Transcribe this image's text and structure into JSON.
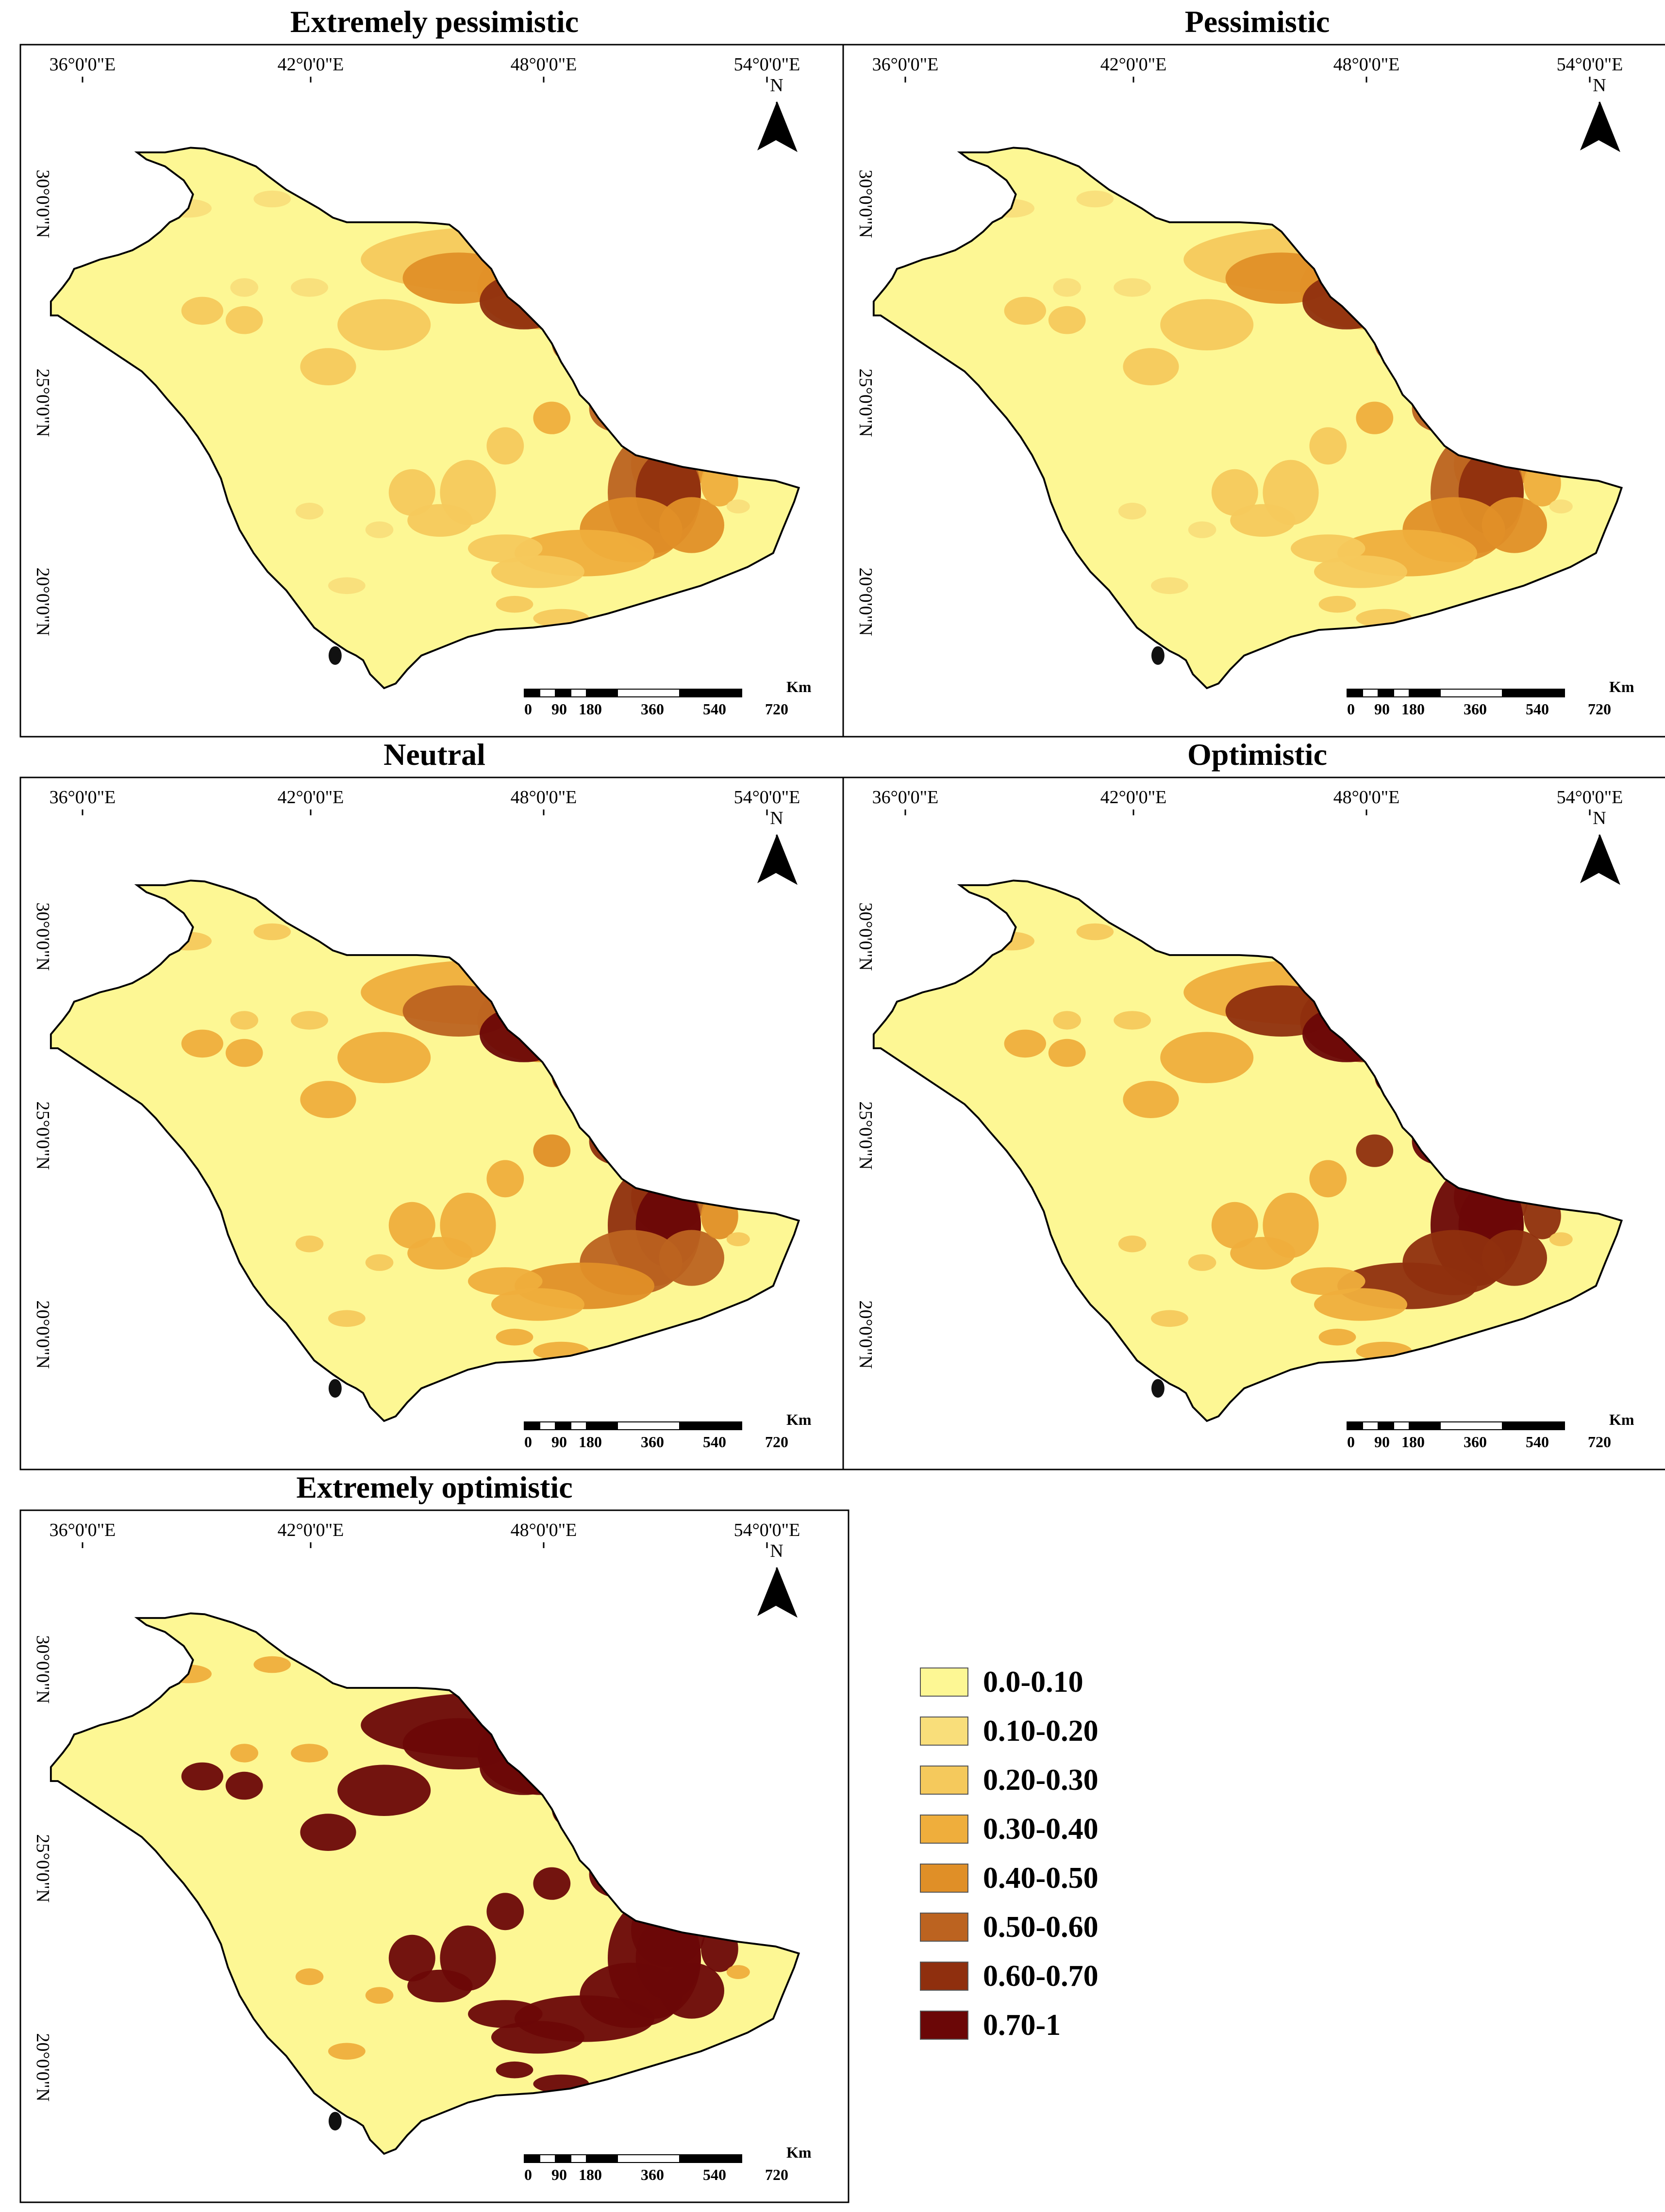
{
  "figure": {
    "panels": [
      {
        "title": "Extremely pessimistic",
        "level": 0
      },
      {
        "title": "Pessimistic",
        "level": 1
      },
      {
        "title": "Neutral",
        "level": 2
      },
      {
        "title": "Optimistic",
        "level": 3
      },
      {
        "title": "Extremely optimistic",
        "level": 4
      }
    ],
    "lon_labels": [
      "36°0'0\"E",
      "42°0'0\"E",
      "48°0'0\"E",
      "54°0'0\"E"
    ],
    "lat_labels": [
      "30°0'0\"N",
      "25°0'0\"N",
      "20°0'0\"N"
    ],
    "north_label": "N",
    "scalebar": {
      "unit": "Km",
      "ticks": [
        "0",
        "90",
        "180",
        "360",
        "540",
        "720"
      ]
    }
  },
  "legend": {
    "items": [
      {
        "label": "0.0-0.10",
        "color": "#fdf794"
      },
      {
        "label": "0.10-0.20",
        "color": "#f9de7a"
      },
      {
        "label": "0.20-0.30",
        "color": "#f5c95c"
      },
      {
        "label": "0.30-0.40",
        "color": "#efae3c"
      },
      {
        "label": "0.40-0.50",
        "color": "#e08f27"
      },
      {
        "label": "0.50-0.60",
        "color": "#bc6320"
      },
      {
        "label": "0.60-0.70",
        "color": "#8f2f0e"
      },
      {
        "label": "0.70-1",
        "color": "#6b0707"
      }
    ]
  },
  "colors": {
    "background": "#fdf794",
    "outline": "#000000"
  }
}
